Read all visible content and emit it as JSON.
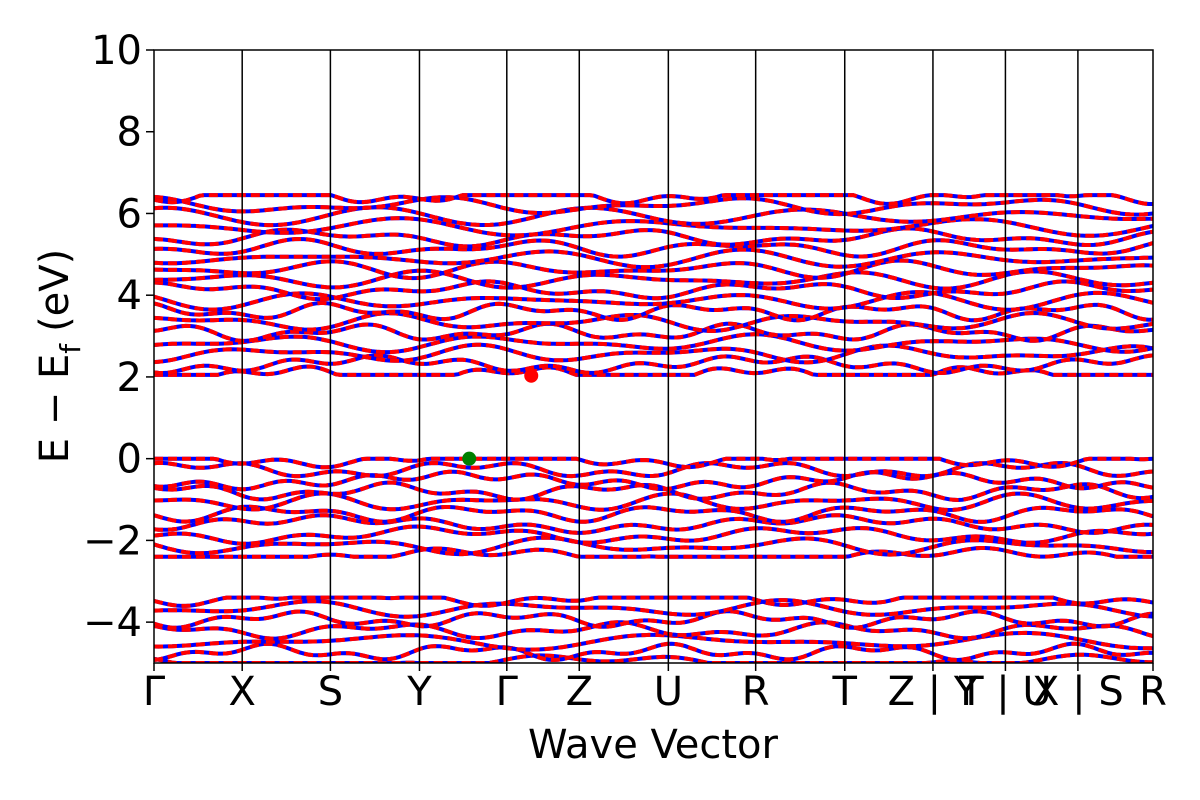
{
  "chart_data": {
    "type": "line",
    "title": "",
    "xlabel": "Wave Vector",
    "ylabel_main": "E − E",
    "ylabel_sub": "f",
    "ylabel_unit": "(eV)",
    "ylim": [
      -5,
      10
    ],
    "yticks": [
      {
        "value": 10,
        "label": "10"
      },
      {
        "value": 8,
        "label": "8"
      },
      {
        "value": 6,
        "label": "6"
      },
      {
        "value": 4,
        "label": "4"
      },
      {
        "value": 2,
        "label": "2"
      },
      {
        "value": 0,
        "label": "0"
      },
      {
        "value": -2,
        "label": "−2"
      },
      {
        "value": -4,
        "label": "−4"
      }
    ],
    "xlim": [
      0,
      11.44
    ],
    "kpoints": [
      {
        "x": 0.0,
        "label": "Γ"
      },
      {
        "x": 1.01,
        "label": "X"
      },
      {
        "x": 2.02,
        "label": "S"
      },
      {
        "x": 3.04,
        "label": "Y"
      },
      {
        "x": 4.04,
        "label": "Γ"
      },
      {
        "x": 4.87,
        "label": "Z"
      },
      {
        "x": 5.89,
        "label": "U"
      },
      {
        "x": 6.89,
        "label": "R"
      },
      {
        "x": 7.91,
        "label": "T"
      },
      {
        "x": 8.92,
        "label": "Z | Y"
      },
      {
        "x": 9.75,
        "label": "T | U"
      },
      {
        "x": 10.58,
        "label": "X | S"
      },
      {
        "x": 11.44,
        "label": "R"
      }
    ],
    "vbm": {
      "x": 3.61,
      "y": 0.0,
      "color": "#008000"
    },
    "cbm": {
      "x": 4.32,
      "y": 2.03,
      "color": "#ff0000"
    },
    "band_colors": [
      "#ff0000",
      "#0000ff"
    ],
    "conduction_bands": {
      "count": 18,
      "bottom_eV": 2.05,
      "top_eV": 6.45
    },
    "valence_bands": {
      "count": 10,
      "top_eV": 0.0,
      "bottom_eV": -2.4
    },
    "deep_bands": {
      "count": 7,
      "top_eV": -3.4,
      "bottom_eV": -5.0
    },
    "grid": false,
    "legend": "none"
  }
}
